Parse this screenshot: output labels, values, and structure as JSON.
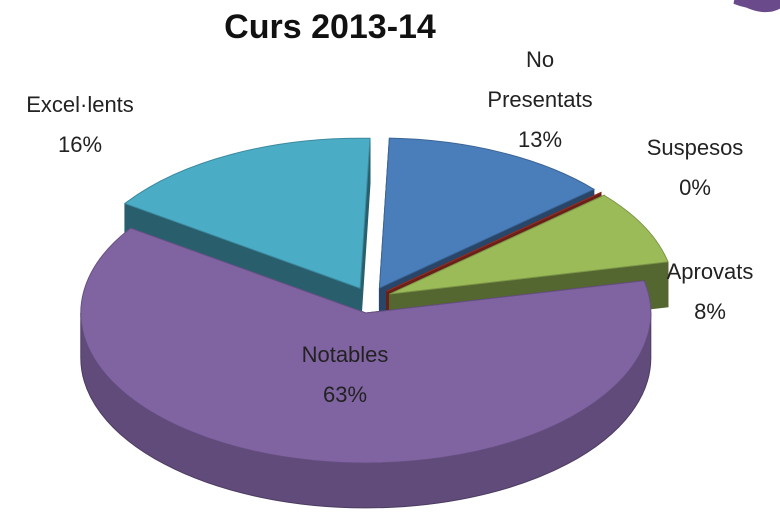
{
  "chart_data": {
    "type": "pie",
    "title": "Curs 2013-14",
    "categories": [
      "No Presentats",
      "Suspesos",
      "Aprovats",
      "Notables",
      "Excel·lents"
    ],
    "values": [
      13,
      0,
      8,
      63,
      16
    ],
    "value_labels": [
      "13%",
      "0%",
      "8%",
      "63%",
      "16%"
    ],
    "colors": [
      "#4a7ebb",
      "#c0392b",
      "#9bbb59",
      "#8064a2",
      "#4bacc6"
    ]
  }
}
